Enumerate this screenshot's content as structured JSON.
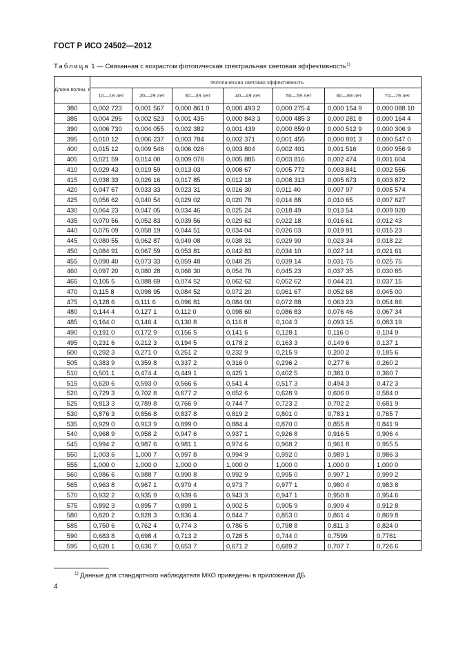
{
  "header": {
    "doc_title": "ГОСТ Р ИСО 24502—2012"
  },
  "caption": {
    "label": "Таблица",
    "text": " 1 — Связанная с возрастом фотопическая спектральная световая эффективность",
    "footnote_mark": "1)"
  },
  "table": {
    "wavelength_header": "Длина волны, нм",
    "group_header": "Фотопическая световая эффективность",
    "age_columns": [
      "10—19 лет",
      "20—29 лет",
      "30—39 лет",
      "40—49 лет",
      "50—59 лет",
      "60—69 лет",
      "70—79 лет"
    ],
    "rows": [
      [
        "380",
        "0,002 723",
        "0,001 567",
        "0,000 861 0",
        "0,000 493 2",
        "0,000 275 4",
        "0,000 154 9",
        "0,000 088 10"
      ],
      [
        "385",
        "0,004 295",
        "0,002 523",
        "0,001 435",
        "0,000 843 3",
        "0,000 485 3",
        "0,000 281 8",
        "0,000 164 4"
      ],
      [
        "390",
        "0,006 730",
        "0,004 055",
        "0,002 382",
        "0,001 439",
        "0,000 859 0",
        "0,000 512 9",
        "0,000 306 9"
      ],
      [
        "395",
        "0,010 12",
        "0,006 237",
        "0,003 784",
        "0,002 371",
        "0,001 455",
        "0,000 891 3",
        "0,000 547 0"
      ],
      [
        "400",
        "0,015 12",
        "0,009 546",
        "0,006 026",
        "0,003 804",
        "0,002 401",
        "0,001 516",
        "0,000 956 9"
      ],
      [
        "405",
        "0,021 59",
        "0,014 00",
        "0,009 076",
        "0,005 885",
        "0,003 816",
        "0,002 474",
        "0,001 604"
      ],
      [
        "410",
        "0,029 43",
        "0,019 59",
        "0,013 03",
        "0,008 67",
        "0,005 772",
        "0,003 841",
        "0,002 556"
      ],
      [
        "415",
        "0,038 33",
        "0,026 16",
        "0,017 85",
        "0,012 18",
        "0,008 313",
        "0,005 673",
        "0,003 872"
      ],
      [
        "420",
        "0,047 67",
        "0,033 33",
        "0,023 31",
        "0,016 30",
        "0,011 40",
        "0,007 97",
        "0,005 574"
      ],
      [
        "425",
        "0,056 62",
        "0,040 54",
        "0,029 02",
        "0,020 78",
        "0,014 88",
        "0,010 65",
        "0,007 627"
      ],
      [
        "430",
        "0,064 23",
        "0,047 05",
        "0,034 46",
        "0,025 24",
        "0,018 49",
        "0,013 54",
        "0,009 920"
      ],
      [
        "435",
        "0,070 56",
        "0,052 83",
        "0,039 56",
        "0,029 62",
        "0,022 18",
        "0,016 61",
        "0,012 43"
      ],
      [
        "440",
        "0,076 09",
        "0,058 19",
        "0,044 51",
        "0,034 04",
        "0,026 03",
        "0,019 91",
        "0,015 23"
      ],
      [
        "445",
        "0,080 55",
        "0,062 87",
        "0,049 08",
        "0,038 31",
        "0,029 90",
        "0,023 34",
        "0,018 22"
      ],
      [
        "450",
        "0,084 91",
        "0,067 59",
        "0,053 81",
        "0,042 83",
        "0,034 10",
        "0,027 14",
        "0,021 61"
      ],
      [
        "455",
        "0,090 40",
        "0,073 33",
        "0,059 48",
        "0,048 25",
        "0,039 14",
        "0,031 75",
        "0,025 75"
      ],
      [
        "460",
        "0,097 20",
        "0,080 28",
        "0,066 30",
        "0,054 76",
        "0,045 23",
        "0,037 35",
        "0,030 85"
      ],
      [
        "465",
        "0,105 5",
        "0,088 69",
        "0,074 52",
        "0,062 62",
        "0,052 62",
        "0,044 21",
        "0,037 15"
      ],
      [
        "470",
        "0,115 8",
        "0,098 95",
        "0,084 52",
        "0,072 20",
        "0,061 67",
        "0,052 68",
        "0,045 00"
      ],
      [
        "475",
        "0,128 6",
        "0,111 6",
        "0,096 81",
        "0,084 00",
        "0,072 88",
        "0,063 23",
        "0,054 86"
      ],
      [
        "480",
        "0,144 4",
        "0,127 1",
        "0,112 0",
        "0,098 60",
        "0,086 83",
        "0,076 46",
        "0,067 34"
      ],
      [
        "485",
        "0,164 0",
        "0,146 4",
        "0,130 8",
        "0,116 8",
        "0,104 3",
        "0,093 15",
        "0,083 19"
      ],
      [
        "490",
        "0,191 0",
        "0,172 9",
        "0,156 5",
        "0,141 6",
        "0,128 1",
        "0,116 0",
        "0,104 9"
      ],
      [
        "495",
        "0,231 6",
        "0,212 3",
        "0,194 5",
        "0,178 2",
        "0,163 3",
        "0,149 6",
        "0,137 1"
      ],
      [
        "500",
        "0,292 3",
        "0,271 0",
        "0,251 2",
        "0,232 9",
        "0,215 9",
        "0,200 2",
        "0,185 6"
      ],
      [
        "505",
        "0,383 9",
        "0,359 8",
        "0,337 2",
        "0,316 0",
        "0,296 2",
        "0,277 6",
        "0,260 2"
      ],
      [
        "510",
        "0,501 1",
        "0,474 4",
        "0,449 1",
        "0,425 1",
        "0,402 5",
        "0,381 0",
        "0,360 7"
      ],
      [
        "515",
        "0,620 6",
        "0,593 0",
        "0,566 6",
        "0,541 4",
        "0,517 3",
        "0,494 3",
        "0,472 3"
      ],
      [
        "520",
        "0,729 3",
        "0,702 8",
        "0,677 2",
        "0,652 6",
        "0,628 9",
        "0,606 0",
        "0,584 0"
      ],
      [
        "525",
        "0,813 3",
        "0,789 8",
        "0,766 9",
        "0,744 7",
        "0,723 2",
        "0,702 2",
        "0,681 9"
      ],
      [
        "530",
        "0,876 3",
        "0,856 8",
        "0,837 8",
        "0,819 2",
        "0,801 0",
        "0,783 1",
        "0,765 7"
      ],
      [
        "535",
        "0,929 0",
        "0,913 9",
        "0,899 0",
        "0,884 4",
        "0,870 0",
        "0,855 8",
        "0,841 9"
      ],
      [
        "540",
        "0,968 9",
        "0,958 2",
        "0,947 6",
        "0,937 1",
        "0,926 8",
        "0,916 5",
        "0,906 4"
      ],
      [
        "545",
        "0,994 2",
        "0,987 6",
        "0,981 1",
        "0,974 6",
        "0,968 2",
        "0,961 8",
        "0,955 5"
      ],
      [
        "550",
        "1,003 6",
        "1,000 7",
        "0,997 8",
        "0,994 9",
        "0,992 0",
        "0,989 1",
        "0,986 3"
      ],
      [
        "555",
        "1,000 0",
        "1,000 0",
        "1,000 0",
        "1,000 0",
        "1,000 0",
        "1,000 0",
        "1,000 0"
      ],
      [
        "560",
        "0,986 6",
        "0,988 7",
        "0,990 8",
        "0,992 9",
        "0,995 0",
        "0,997 1",
        "0,999 2"
      ],
      [
        "565",
        "0,963 8",
        "0,967 1",
        "0,970 4",
        "0,973 7",
        "0,977 1",
        "0,980 4",
        "0,983 8"
      ],
      [
        "570",
        "0,932 2",
        "0,935 9",
        "0,939 6",
        "0,943 3",
        "0,947 1",
        "0,950 8",
        "0,954 6"
      ],
      [
        "575",
        "0,892 3",
        "0,895 7",
        "0,899 1",
        "0,902 5",
        "0,905 9",
        "0,909 4",
        "0,912 8"
      ],
      [
        "580",
        "0,820 2",
        "0,828 3",
        "0,836 4",
        "0,844 7",
        "0,853 0",
        "0,861 4",
        "0,869 8"
      ],
      [
        "585",
        "0,750 6",
        "0,762 4",
        "0,774 3",
        "0,786 5",
        "0,798 8",
        "0,811 3",
        "0,824 0"
      ],
      [
        "590",
        "0,683 8",
        "0,698 4",
        "0,713 2",
        "0,728 5",
        "0,744 0",
        "0,7599",
        "0,7761"
      ],
      [
        "595",
        "0,620 1",
        "0,636 7",
        "0,653 7",
        "0,671 2",
        "0,689 2",
        "0,707 7",
        "0,726 6"
      ]
    ]
  },
  "footnote": {
    "mark": "1)",
    "text": " Данные для стандартного наблюдателя МКО приведены в приложении ДБ."
  },
  "page_number": "4"
}
